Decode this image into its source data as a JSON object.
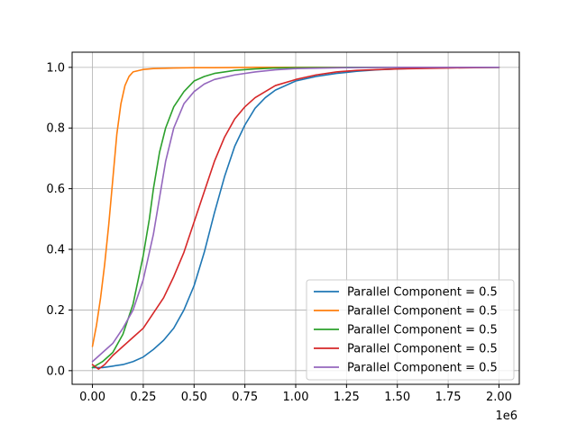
{
  "chart_data": {
    "type": "line",
    "title": "",
    "xlabel": "",
    "ylabel": "",
    "x_offset_label": "1e6",
    "xlim": [
      -0.1,
      2.1
    ],
    "ylim": [
      -0.045,
      1.05
    ],
    "xticks": [
      0.0,
      0.25,
      0.5,
      0.75,
      1.0,
      1.25,
      1.5,
      1.75,
      2.0
    ],
    "xtick_labels": [
      "0.00",
      "0.25",
      "0.50",
      "0.75",
      "1.00",
      "1.25",
      "1.50",
      "1.75",
      "2.00"
    ],
    "yticks": [
      0.0,
      0.2,
      0.4,
      0.6,
      0.8,
      1.0
    ],
    "ytick_labels": [
      "0.0",
      "0.2",
      "0.4",
      "0.6",
      "0.8",
      "1.0"
    ],
    "grid": true,
    "legend_position": "lower-right",
    "series": [
      {
        "name": "Parallel Component = 0.5",
        "color": "#1f77b4",
        "x": [
          0.0,
          0.05,
          0.1,
          0.15,
          0.2,
          0.25,
          0.3,
          0.35,
          0.4,
          0.45,
          0.5,
          0.55,
          0.6,
          0.65,
          0.7,
          0.75,
          0.8,
          0.85,
          0.9,
          1.0,
          1.1,
          1.2,
          1.3,
          1.4,
          1.5,
          1.6,
          1.75,
          2.0
        ],
        "y": [
          0.01,
          0.01,
          0.015,
          0.02,
          0.03,
          0.045,
          0.07,
          0.1,
          0.14,
          0.2,
          0.28,
          0.39,
          0.52,
          0.64,
          0.74,
          0.81,
          0.865,
          0.9,
          0.925,
          0.955,
          0.97,
          0.98,
          0.987,
          0.992,
          0.995,
          0.997,
          0.999,
          1.0
        ]
      },
      {
        "name": "Parallel Component = 0.5",
        "color": "#ff7f0e",
        "x": [
          0.0,
          0.02,
          0.04,
          0.06,
          0.08,
          0.1,
          0.12,
          0.14,
          0.16,
          0.18,
          0.2,
          0.23,
          0.25,
          0.3,
          0.4,
          0.5,
          0.6,
          0.8,
          1.0,
          1.5,
          2.0
        ],
        "y": [
          0.08,
          0.15,
          0.24,
          0.35,
          0.48,
          0.63,
          0.78,
          0.88,
          0.94,
          0.97,
          0.985,
          0.99,
          0.993,
          0.996,
          0.998,
          0.999,
          0.999,
          1.0,
          1.0,
          1.0,
          1.0
        ]
      },
      {
        "name": "Parallel Component = 0.5",
        "color": "#2ca02c",
        "x": [
          0.0,
          0.05,
          0.1,
          0.15,
          0.2,
          0.25,
          0.28,
          0.3,
          0.33,
          0.36,
          0.4,
          0.45,
          0.5,
          0.55,
          0.6,
          0.7,
          0.8,
          0.9,
          1.0,
          1.25,
          1.5,
          2.0
        ],
        "y": [
          0.01,
          0.03,
          0.06,
          0.12,
          0.22,
          0.38,
          0.5,
          0.6,
          0.72,
          0.8,
          0.87,
          0.92,
          0.955,
          0.97,
          0.98,
          0.99,
          0.995,
          0.998,
          0.999,
          1.0,
          1.0,
          1.0
        ]
      },
      {
        "name": "Parallel Component = 0.5",
        "color": "#d62728",
        "x": [
          0.0,
          0.03,
          0.06,
          0.1,
          0.15,
          0.2,
          0.25,
          0.3,
          0.35,
          0.4,
          0.45,
          0.5,
          0.55,
          0.6,
          0.65,
          0.7,
          0.75,
          0.8,
          0.85,
          0.9,
          1.0,
          1.1,
          1.2,
          1.3,
          1.5,
          1.75,
          2.0
        ],
        "y": [
          0.02,
          0.005,
          0.02,
          0.05,
          0.08,
          0.11,
          0.14,
          0.19,
          0.24,
          0.31,
          0.39,
          0.49,
          0.59,
          0.69,
          0.77,
          0.83,
          0.87,
          0.9,
          0.92,
          0.94,
          0.96,
          0.975,
          0.985,
          0.99,
          0.995,
          0.998,
          1.0
        ]
      },
      {
        "name": "Parallel Component = 0.5",
        "color": "#9467bd",
        "x": [
          0.0,
          0.05,
          0.1,
          0.15,
          0.2,
          0.25,
          0.3,
          0.33,
          0.36,
          0.4,
          0.45,
          0.5,
          0.55,
          0.6,
          0.7,
          0.8,
          0.9,
          1.0,
          1.25,
          1.5,
          2.0
        ],
        "y": [
          0.03,
          0.06,
          0.09,
          0.14,
          0.2,
          0.3,
          0.45,
          0.57,
          0.69,
          0.8,
          0.88,
          0.92,
          0.945,
          0.96,
          0.975,
          0.985,
          0.992,
          0.996,
          0.999,
          1.0,
          1.0
        ]
      }
    ]
  }
}
